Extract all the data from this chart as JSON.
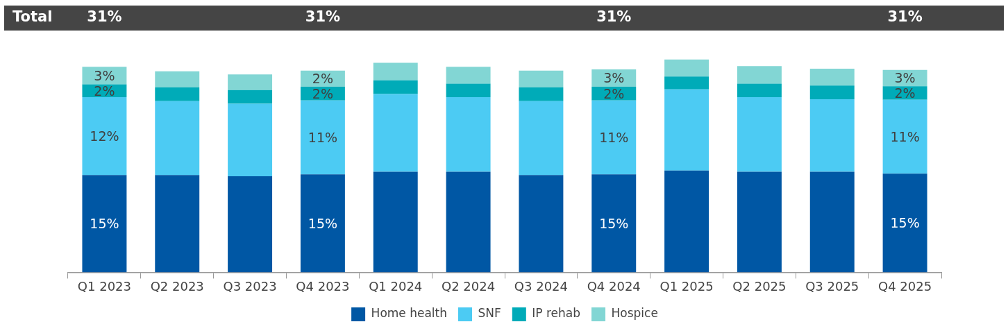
{
  "chart_data": {
    "type": "bar",
    "stacked": true,
    "categories": [
      "Q1 2023",
      "Q2 2023",
      "Q3 2023",
      "Q4 2023",
      "Q1 2024",
      "Q2 2024",
      "Q3 2024",
      "Q4 2024",
      "Q1 2025",
      "Q2 2025",
      "Q3 2025",
      "Q4 2025"
    ],
    "series": [
      {
        "name": "Home health",
        "color": "#0057a4",
        "values": [
          15.0,
          15.0,
          14.8,
          15.1,
          15.5,
          15.5,
          15.0,
          15.1,
          15.7,
          15.5,
          15.5,
          15.2
        ],
        "value_labels": [
          "15%",
          null,
          null,
          "15%",
          null,
          null,
          null,
          "15%",
          null,
          null,
          null,
          "15%"
        ]
      },
      {
        "name": "SNF",
        "color": "#4ccbf3",
        "values": [
          12.0,
          11.4,
          11.2,
          11.4,
          12.0,
          11.5,
          11.4,
          11.4,
          12.5,
          11.5,
          11.2,
          11.4
        ],
        "value_labels": [
          "12%",
          null,
          null,
          "11%",
          null,
          null,
          null,
          "11%",
          null,
          null,
          null,
          "11%"
        ]
      },
      {
        "name": "IP rehab",
        "color": "#00abb8",
        "values": [
          2.0,
          2.1,
          2.1,
          2.1,
          2.1,
          2.1,
          2.1,
          2.1,
          2.0,
          2.1,
          2.1,
          2.1
        ],
        "value_labels": [
          "2%",
          null,
          null,
          "2%",
          null,
          null,
          null,
          "2%",
          null,
          null,
          null,
          "2%"
        ]
      },
      {
        "name": "Hospice",
        "color": "#82d6d4",
        "values": [
          2.7,
          2.5,
          2.4,
          2.5,
          2.7,
          2.6,
          2.6,
          2.7,
          2.6,
          2.7,
          2.6,
          2.5
        ],
        "value_labels": [
          "3%",
          null,
          null,
          "2%",
          null,
          null,
          null,
          "3%",
          null,
          null,
          null,
          "3%"
        ]
      }
    ],
    "ylim": [
      0,
      33
    ],
    "totals": [
      "31%",
      null,
      null,
      "31%",
      null,
      null,
      null,
      "31%",
      null,
      null,
      null,
      "31%"
    ],
    "annotations": [
      "Total"
    ],
    "legend": "bottom",
    "tick_labels": "x",
    "grid": false
  }
}
